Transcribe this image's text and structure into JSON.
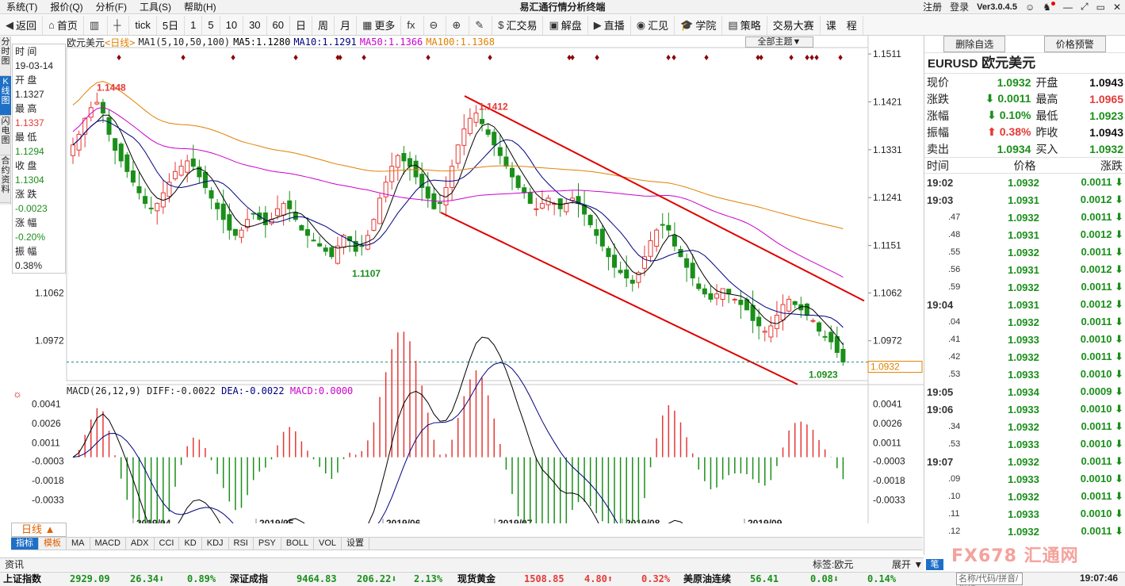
{
  "menu": {
    "items": [
      "系统(T)",
      "报价(Q)",
      "分析(F)",
      "工具(S)",
      "帮助(H)"
    ],
    "title": "易汇通行情分析终端",
    "right": [
      "注册",
      "登录",
      "Ver3.0.4.5"
    ]
  },
  "toolbar": {
    "items": [
      {
        "icon": "◀",
        "label": "返回"
      },
      {
        "icon": "⌂",
        "label": "首页"
      },
      {
        "icon": "▥",
        "label": ""
      },
      {
        "icon": "┼",
        "label": ""
      },
      {
        "icon": "",
        "label": "tick"
      },
      {
        "icon": "",
        "label": "5日"
      },
      {
        "icon": "",
        "label": "1"
      },
      {
        "icon": "",
        "label": "5"
      },
      {
        "icon": "",
        "label": "10"
      },
      {
        "icon": "",
        "label": "30"
      },
      {
        "icon": "",
        "label": "60"
      },
      {
        "icon": "",
        "label": "日"
      },
      {
        "icon": "",
        "label": "周"
      },
      {
        "icon": "",
        "label": "月"
      },
      {
        "icon": "▦",
        "label": "更多"
      },
      {
        "icon": "fx",
        "label": ""
      },
      {
        "icon": "⊖",
        "label": ""
      },
      {
        "icon": "⊕",
        "label": ""
      },
      {
        "icon": "✎",
        "label": ""
      },
      {
        "icon": "$",
        "label": "汇交易"
      },
      {
        "icon": "▣",
        "label": "解盘"
      },
      {
        "icon": "▶",
        "label": "直播"
      },
      {
        "icon": "◉",
        "label": "汇见"
      },
      {
        "icon": "🎓",
        "label": "学院"
      },
      {
        "icon": "▤",
        "label": "策略"
      },
      {
        "icon": "",
        "label": "交易大赛"
      },
      {
        "icon": "",
        "label": "课　程"
      }
    ]
  },
  "left_tabs": [
    "分时图",
    "K线图",
    "闪电图",
    "合约资料"
  ],
  "info_panel": {
    "time_label": "时 间",
    "time": "19-03-14",
    "open_label": "开 盘",
    "open": "1.1327",
    "high_label": "最 高",
    "high": "1.1337",
    "low_label": "最 低",
    "low": "1.1294",
    "close_label": "收 盘",
    "close": "1.1304",
    "change_label": "涨 跌",
    "change": "-0.0023",
    "pct_label": "涨 幅",
    "pct": "-0.20%",
    "amp_label": "振 幅",
    "amp": "0.38%"
  },
  "chart_header": {
    "name": "欧元美元",
    "period": "<日线>",
    "ma1": "MA1(5,10,50,100)",
    "ma5": "MA5:1.1280",
    "ma10": "MA10:1.1291",
    "ma50": "MA50:1.1366",
    "ma100": "MA100:1.1368",
    "theme_button": "全部主题▼"
  },
  "macd_header": {
    "name": "MACD(26,12,9)",
    "diff": "DIFF:-0.0022",
    "dea": "DEA:-0.0022",
    "macd": "MACD:0.0000"
  },
  "chart_data": [
    {
      "type": "candlestick",
      "title": "欧元美元",
      "ylim": [
        1.0912,
        1.152
      ],
      "y_ticks": [
        "1.1511",
        "1.1421",
        "1.1331",
        "1.1241",
        "1.1151",
        "1.1062",
        "1.0972"
      ],
      "x_labels": [
        "2019/04",
        "2019/05",
        "2019/06",
        "2019/07",
        "2019/08",
        "2019/09"
      ],
      "annotations": {
        "high_label": "1.1448",
        "peak2_label": "1.1412",
        "low1_label": "1.1107",
        "low2_label": "1.0923",
        "current_price": "1.0932"
      },
      "close_series": [
        1.134,
        1.136,
        1.139,
        1.141,
        1.142,
        1.14,
        1.136,
        1.133,
        1.131,
        1.129,
        1.127,
        1.125,
        1.123,
        1.122,
        1.123,
        1.125,
        1.127,
        1.129,
        1.13,
        1.131,
        1.13,
        1.128,
        1.126,
        1.124,
        1.122,
        1.12,
        1.118,
        1.117,
        1.118,
        1.12,
        1.121,
        1.12,
        1.119,
        1.12,
        1.122,
        1.123,
        1.122,
        1.12,
        1.118,
        1.117,
        1.116,
        1.115,
        1.114,
        1.113,
        1.115,
        1.117,
        1.116,
        1.114,
        1.115,
        1.117,
        1.12,
        1.124,
        1.127,
        1.13,
        1.132,
        1.131,
        1.13,
        1.128,
        1.126,
        1.124,
        1.122,
        1.123,
        1.126,
        1.13,
        1.134,
        1.137,
        1.139,
        1.14,
        1.138,
        1.136,
        1.134,
        1.132,
        1.13,
        1.128,
        1.126,
        1.125,
        1.123,
        1.122,
        1.123,
        1.124,
        1.123,
        1.122,
        1.123,
        1.124,
        1.123,
        1.121,
        1.119,
        1.117,
        1.115,
        1.113,
        1.111,
        1.11,
        1.109,
        1.108,
        1.11,
        1.113,
        1.116,
        1.118,
        1.119,
        1.118,
        1.115,
        1.113,
        1.111,
        1.109,
        1.107,
        1.106,
        1.105,
        1.106,
        1.107,
        1.106,
        1.105,
        1.104,
        1.103,
        1.101,
        1.1,
        1.099,
        1.1,
        1.102,
        1.104,
        1.105,
        1.104,
        1.103,
        1.102,
        1.101,
        1.099,
        1.098,
        1.097,
        1.095,
        1.0932
      ]
    },
    {
      "type": "bar",
      "title": "MACD(26,12,9)",
      "ylim": [
        -0.0045,
        0.005
      ],
      "y_ticks": [
        "0.0041",
        "0.0026",
        "0.0011",
        "-0.0003",
        "-0.0018",
        "-0.0033"
      ]
    }
  ],
  "quote": {
    "delete_btn": "删除自选",
    "alert_btn": "价格预警",
    "symbol": "EURUSD",
    "symbol_cn": "欧元美元",
    "stats": [
      {
        "l1": "现价",
        "v1": "1.0932",
        "c1": "green",
        "l2": "开盘",
        "v2": "1.0943",
        "c2": "black"
      },
      {
        "l1": "涨跌",
        "v1": "⬇ 0.0011",
        "c1": "green",
        "l2": "最高",
        "v2": "1.0965",
        "c2": "red"
      },
      {
        "l1": "涨幅",
        "v1": "⬇ 0.10%",
        "c1": "green",
        "l2": "最低",
        "v2": "1.0923",
        "c2": "green"
      },
      {
        "l1": "振幅",
        "v1": "⬆ 0.38%",
        "c1": "red",
        "l2": "昨收",
        "v2": "1.0943",
        "c2": "black"
      },
      {
        "l1": "卖出",
        "v1": "1.0934",
        "c1": "green",
        "l2": "买入",
        "v2": "1.0932",
        "c2": "green"
      }
    ],
    "col_time": "时间",
    "col_price": "价格",
    "col_change": "涨跌",
    "ticks": [
      {
        "t": "19:02",
        "p": "1.0932",
        "c": "0.0011 ⬇",
        "sub": false
      },
      {
        "t": "19:03",
        "p": "1.0931",
        "c": "0.0012 ⬇",
        "sub": false
      },
      {
        "t": ".47",
        "p": "1.0932",
        "c": "0.0011 ⬇",
        "sub": true
      },
      {
        "t": ".48",
        "p": "1.0931",
        "c": "0.0012 ⬇",
        "sub": true
      },
      {
        "t": ".55",
        "p": "1.0932",
        "c": "0.0011 ⬇",
        "sub": true
      },
      {
        "t": ".56",
        "p": "1.0931",
        "c": "0.0012 ⬇",
        "sub": true
      },
      {
        "t": ".59",
        "p": "1.0932",
        "c": "0.0011 ⬇",
        "sub": true
      },
      {
        "t": "19:04",
        "p": "1.0931",
        "c": "0.0012 ⬇",
        "sub": false
      },
      {
        "t": ".04",
        "p": "1.0932",
        "c": "0.0011 ⬇",
        "sub": true
      },
      {
        "t": ".41",
        "p": "1.0933",
        "c": "0.0010 ⬇",
        "sub": true
      },
      {
        "t": ".42",
        "p": "1.0932",
        "c": "0.0011 ⬇",
        "sub": true
      },
      {
        "t": ".53",
        "p": "1.0933",
        "c": "0.0010 ⬇",
        "sub": true
      },
      {
        "t": "19:05",
        "p": "1.0934",
        "c": "0.0009 ⬇",
        "sub": false
      },
      {
        "t": "19:06",
        "p": "1.0933",
        "c": "0.0010 ⬇",
        "sub": false
      },
      {
        "t": ".34",
        "p": "1.0932",
        "c": "0.0011 ⬇",
        "sub": true
      },
      {
        "t": ".53",
        "p": "1.0933",
        "c": "0.0010 ⬇",
        "sub": true
      },
      {
        "t": "19:07",
        "p": "1.0932",
        "c": "0.0011 ⬇",
        "sub": false
      },
      {
        "t": ".09",
        "p": "1.0933",
        "c": "0.0010 ⬇",
        "sub": true
      },
      {
        "t": ".10",
        "p": "1.0932",
        "c": "0.0011 ⬇",
        "sub": true
      },
      {
        "t": ".11",
        "p": "1.0933",
        "c": "0.0010 ⬇",
        "sub": true
      },
      {
        "t": ".12",
        "p": "1.0932",
        "c": "0.0011 ⬇",
        "sub": true
      }
    ]
  },
  "period_tab": "日线 ▲",
  "indicator_tabs": [
    "指标",
    "模板",
    "MA",
    "MACD",
    "ADX",
    "CCI",
    "KD",
    "KDJ",
    "RSI",
    "PSY",
    "BOLL",
    "VOL",
    "设置"
  ],
  "info_bar": {
    "left": "资讯",
    "tag": "标签:欧元",
    "expand": "展开 ▼",
    "pen": "笔"
  },
  "index_bar": [
    {
      "name": "上证指数",
      "value": "2929.09",
      "chg": "26.34⬇",
      "pct": "0.89%",
      "color": "green"
    },
    {
      "name": "深证成指",
      "value": "9464.83",
      "chg": "206.22⬇",
      "pct": "2.13%",
      "color": "green"
    },
    {
      "name": "现货黄金",
      "value": "1508.85",
      "chg": "4.80⬆",
      "pct": "0.32%",
      "color": "red"
    },
    {
      "name": "美原油连续",
      "value": "56.41",
      "chg": "0.08⬇",
      "pct": "0.14%",
      "color": "green"
    }
  ],
  "search_placeholder": "名称/代码/拼音/指标",
  "clock": "19:07:46",
  "watermark": "FX678 汇通网",
  "colors": {
    "up": "#e53935",
    "down": "#1a8f1a",
    "ma5": "#000000",
    "ma10": "#000080",
    "ma50": "#cc00cc",
    "ma100": "#e08000",
    "channel": "#e00000",
    "accent": "#1e6fc7"
  }
}
